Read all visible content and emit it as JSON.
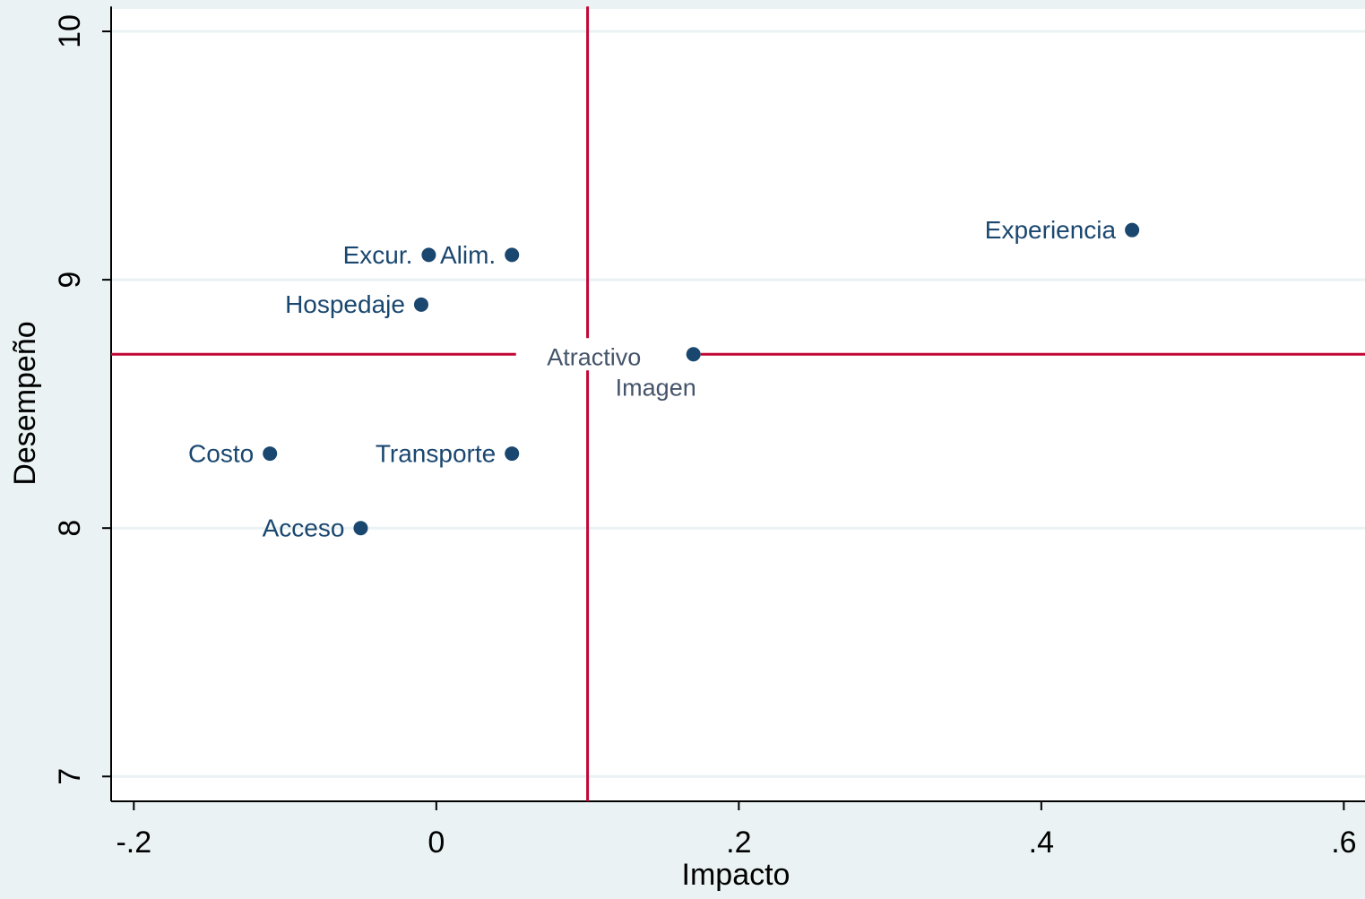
{
  "chart_data": {
    "type": "scatter",
    "xlabel": "Impacto",
    "ylabel": "Desempeño",
    "x": [
      0.46,
      0.05,
      -0.005,
      -0.01,
      0.17,
      -0.11,
      0.05,
      -0.05
    ],
    "values": [
      9.2,
      9.1,
      9.1,
      8.9,
      8.7,
      8.3,
      8.3,
      8.0
    ],
    "labels": [
      "Experiencia",
      "Alim.",
      "Excur.",
      "Hospedaje",
      "Imagen",
      "Costo",
      "Transporte",
      "Acceso"
    ],
    "annotation": "Atractivo",
    "color": "#1a476f",
    "xlim": [
      -0.215,
      0.614
    ],
    "xticks": [
      {
        "value": -0.2,
        "label": "-.2"
      },
      0,
      {
        "value": 0.2,
        "label": ".2"
      },
      {
        "value": 0.4,
        "label": ".4"
      },
      {
        "value": 0.6,
        "label": ".6"
      }
    ],
    "ylim": [
      6.9,
      10.1
    ],
    "yticks": [
      7,
      8,
      9,
      10
    ],
    "grid": true,
    "xline": 0.1,
    "yline": 8.7,
    "line_color": "#c10534"
  }
}
